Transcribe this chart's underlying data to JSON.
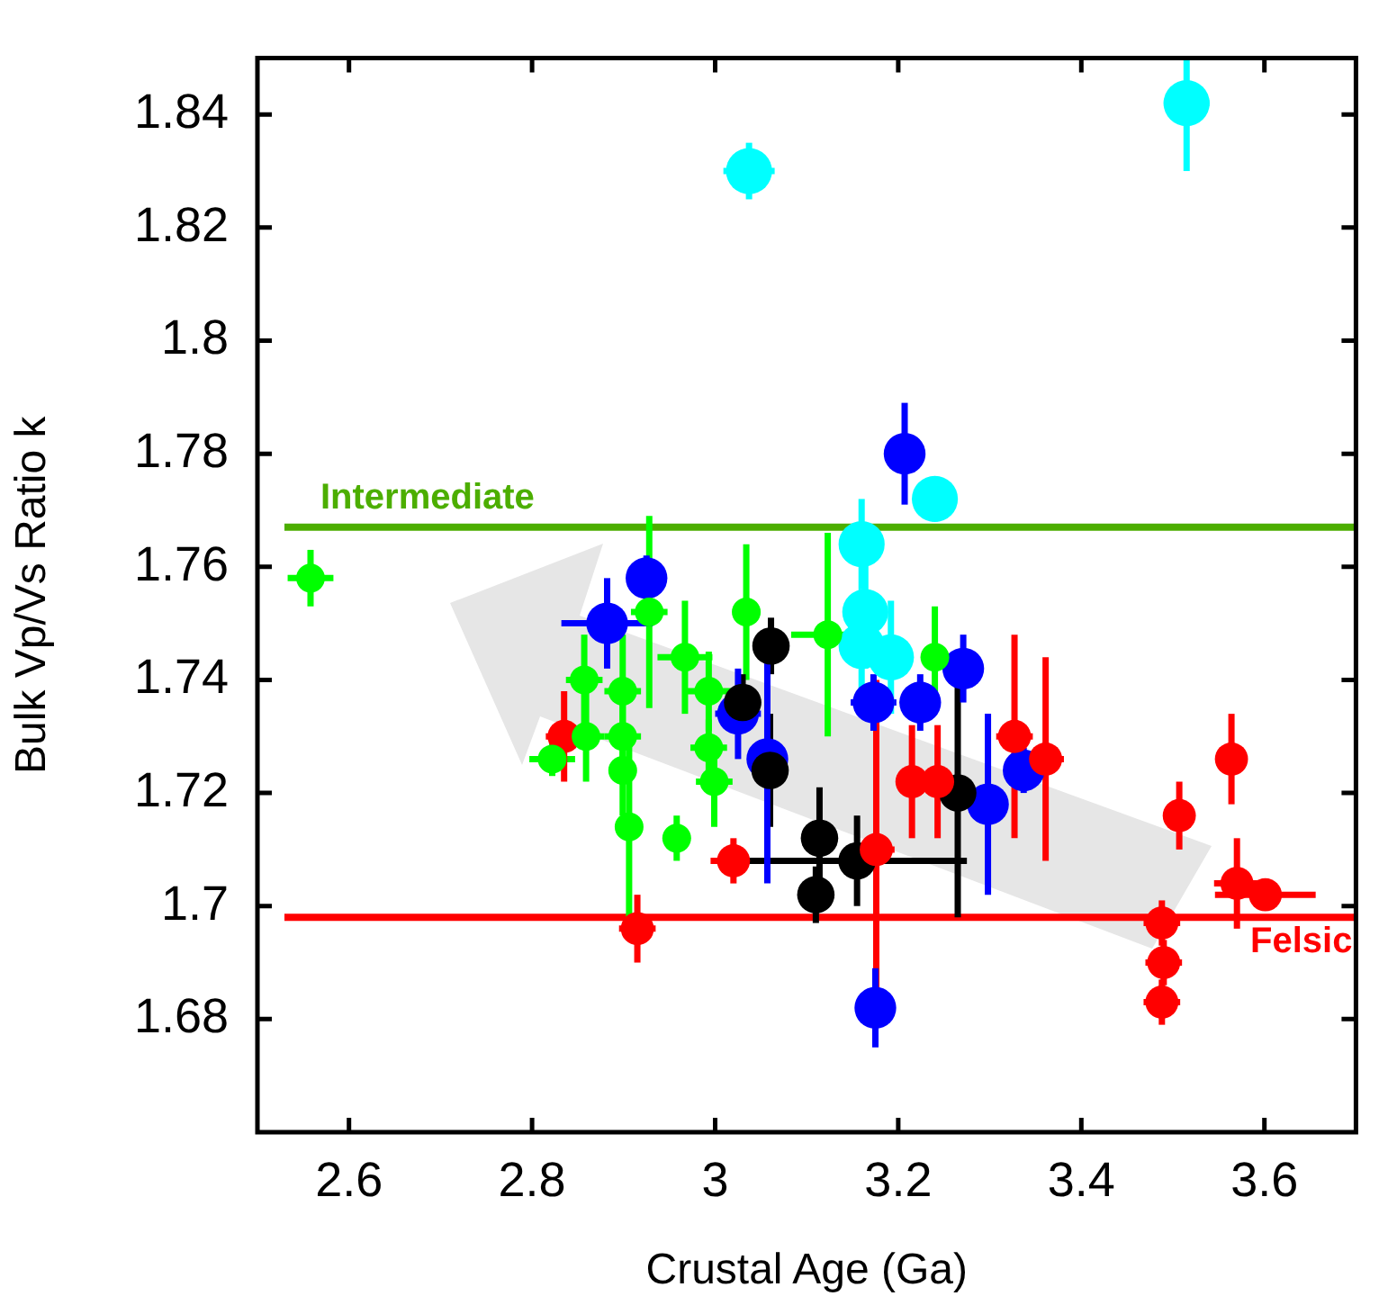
{
  "chart_data": {
    "type": "scatter",
    "xlabel": "Crustal Age (Ga)",
    "ylabel": "Bulk Vp/Vs Ratio k",
    "xlim": [
      2.5,
      3.7
    ],
    "ylim": [
      1.66,
      1.85
    ],
    "xticks": [
      2.6,
      2.8,
      3,
      3.2,
      3.4,
      3.6
    ],
    "yticks": [
      1.68,
      1.7,
      1.72,
      1.74,
      1.76,
      1.78,
      1.8,
      1.82,
      1.84
    ],
    "grid": false,
    "legend": false,
    "marker": "circle",
    "ref_lines": [
      {
        "axis": "y",
        "value": 1.767,
        "label": "Intermediate",
        "color": "#4cae00"
      },
      {
        "axis": "y",
        "value": 1.698,
        "label": "Felsic",
        "color": "#ff0000"
      }
    ],
    "series": [
      {
        "color": "#00ff00",
        "x": [
          2.558,
          2.928,
          2.967,
          2.857,
          2.899,
          2.859,
          2.899,
          2.822,
          2.899,
          2.906,
          2.958,
          3.034,
          3.123,
          3.24,
          2.993,
          2.993,
          2.999
        ],
        "values": [
          1.758,
          1.752,
          1.744,
          1.74,
          1.738,
          1.73,
          1.73,
          1.726,
          1.724,
          1.714,
          1.712,
          1.752,
          1.748,
          1.744,
          1.738,
          1.728,
          1.722
        ],
        "errors": [
          0.005,
          0.017,
          0.01,
          0.008,
          0.01,
          0.008,
          0.006,
          0.003,
          0.008,
          0.016,
          0.004,
          0.012,
          0.018,
          0.009,
          0.007,
          0.005,
          0.008
        ],
        "xerrors": [
          0.025,
          0.02,
          0.03,
          0.02,
          0.02,
          0.02,
          0.02,
          0.025,
          0.015,
          0.01,
          0.015,
          0.015,
          0.04,
          null,
          0.025,
          0.02,
          0.02
        ]
      },
      {
        "color": "#ff0000",
        "x": [
          2.835,
          2.915,
          3.02,
          3.176,
          3.215,
          3.243,
          3.327,
          3.361,
          3.507,
          3.564,
          3.57,
          3.601,
          3.488,
          3.49,
          3.488
        ],
        "values": [
          1.73,
          1.696,
          1.708,
          1.71,
          1.722,
          1.722,
          1.73,
          1.726,
          1.716,
          1.726,
          1.704,
          1.702,
          1.697,
          1.69,
          1.683
        ],
        "errors": [
          0.008,
          0.006,
          0.004,
          0.03,
          0.01,
          0.01,
          0.018,
          0.018,
          0.006,
          0.008,
          0.008,
          null,
          0.004,
          0.004,
          0.004
        ],
        "xerrors": [
          0.02,
          0.02,
          0.025,
          0.02,
          0.015,
          0.015,
          0.02,
          0.02,
          0.015,
          0.015,
          0.025,
          0.055,
          0.02,
          0.02,
          0.02
        ]
      },
      {
        "color": "#000000",
        "x": [
          3.061,
          3.03,
          3.06,
          3.265,
          3.114,
          3.155,
          3.11
        ],
        "values": [
          1.746,
          1.736,
          1.724,
          1.72,
          1.712,
          1.708,
          1.702
        ],
        "errors": [
          0.005,
          0.005,
          0.01,
          0.022,
          0.009,
          0.008,
          0.005
        ],
        "xerrors": [
          0.01,
          0.02,
          0.01,
          0.01,
          0.01,
          0.12,
          0.02
        ]
      },
      {
        "color": "#0000ff",
        "x": [
          3.207,
          2.925,
          2.882,
          3.025,
          3.173,
          3.224,
          3.271,
          3.057,
          3.298,
          3.337,
          3.175
        ],
        "values": [
          1.78,
          1.758,
          1.75,
          1.734,
          1.736,
          1.736,
          1.742,
          1.726,
          1.718,
          1.724,
          1.682
        ],
        "errors": [
          0.009,
          0.004,
          0.008,
          0.008,
          0.005,
          0.005,
          0.006,
          0.022,
          0.016,
          0.004,
          0.007
        ],
        "xerrors": [
          0.01,
          0.02,
          0.05,
          0.025,
          0.025,
          0.02,
          0.02,
          0.015,
          0.015,
          0.01,
          0.01
        ]
      },
      {
        "color": "#00ffff",
        "x": [
          3.037,
          3.515,
          3.24,
          3.16,
          3.164,
          3.16,
          3.192
        ],
        "values": [
          1.83,
          1.842,
          1.772,
          1.764,
          1.752,
          1.746,
          1.744
        ],
        "errors": [
          0.005,
          [
            1.83,
            1.85
          ],
          0.004,
          0.008,
          0.01,
          0.01,
          0.01
        ],
        "xerrors": [
          0.028,
          0.025,
          0.01,
          0.02,
          0.015,
          0.01,
          0.015
        ]
      }
    ]
  }
}
